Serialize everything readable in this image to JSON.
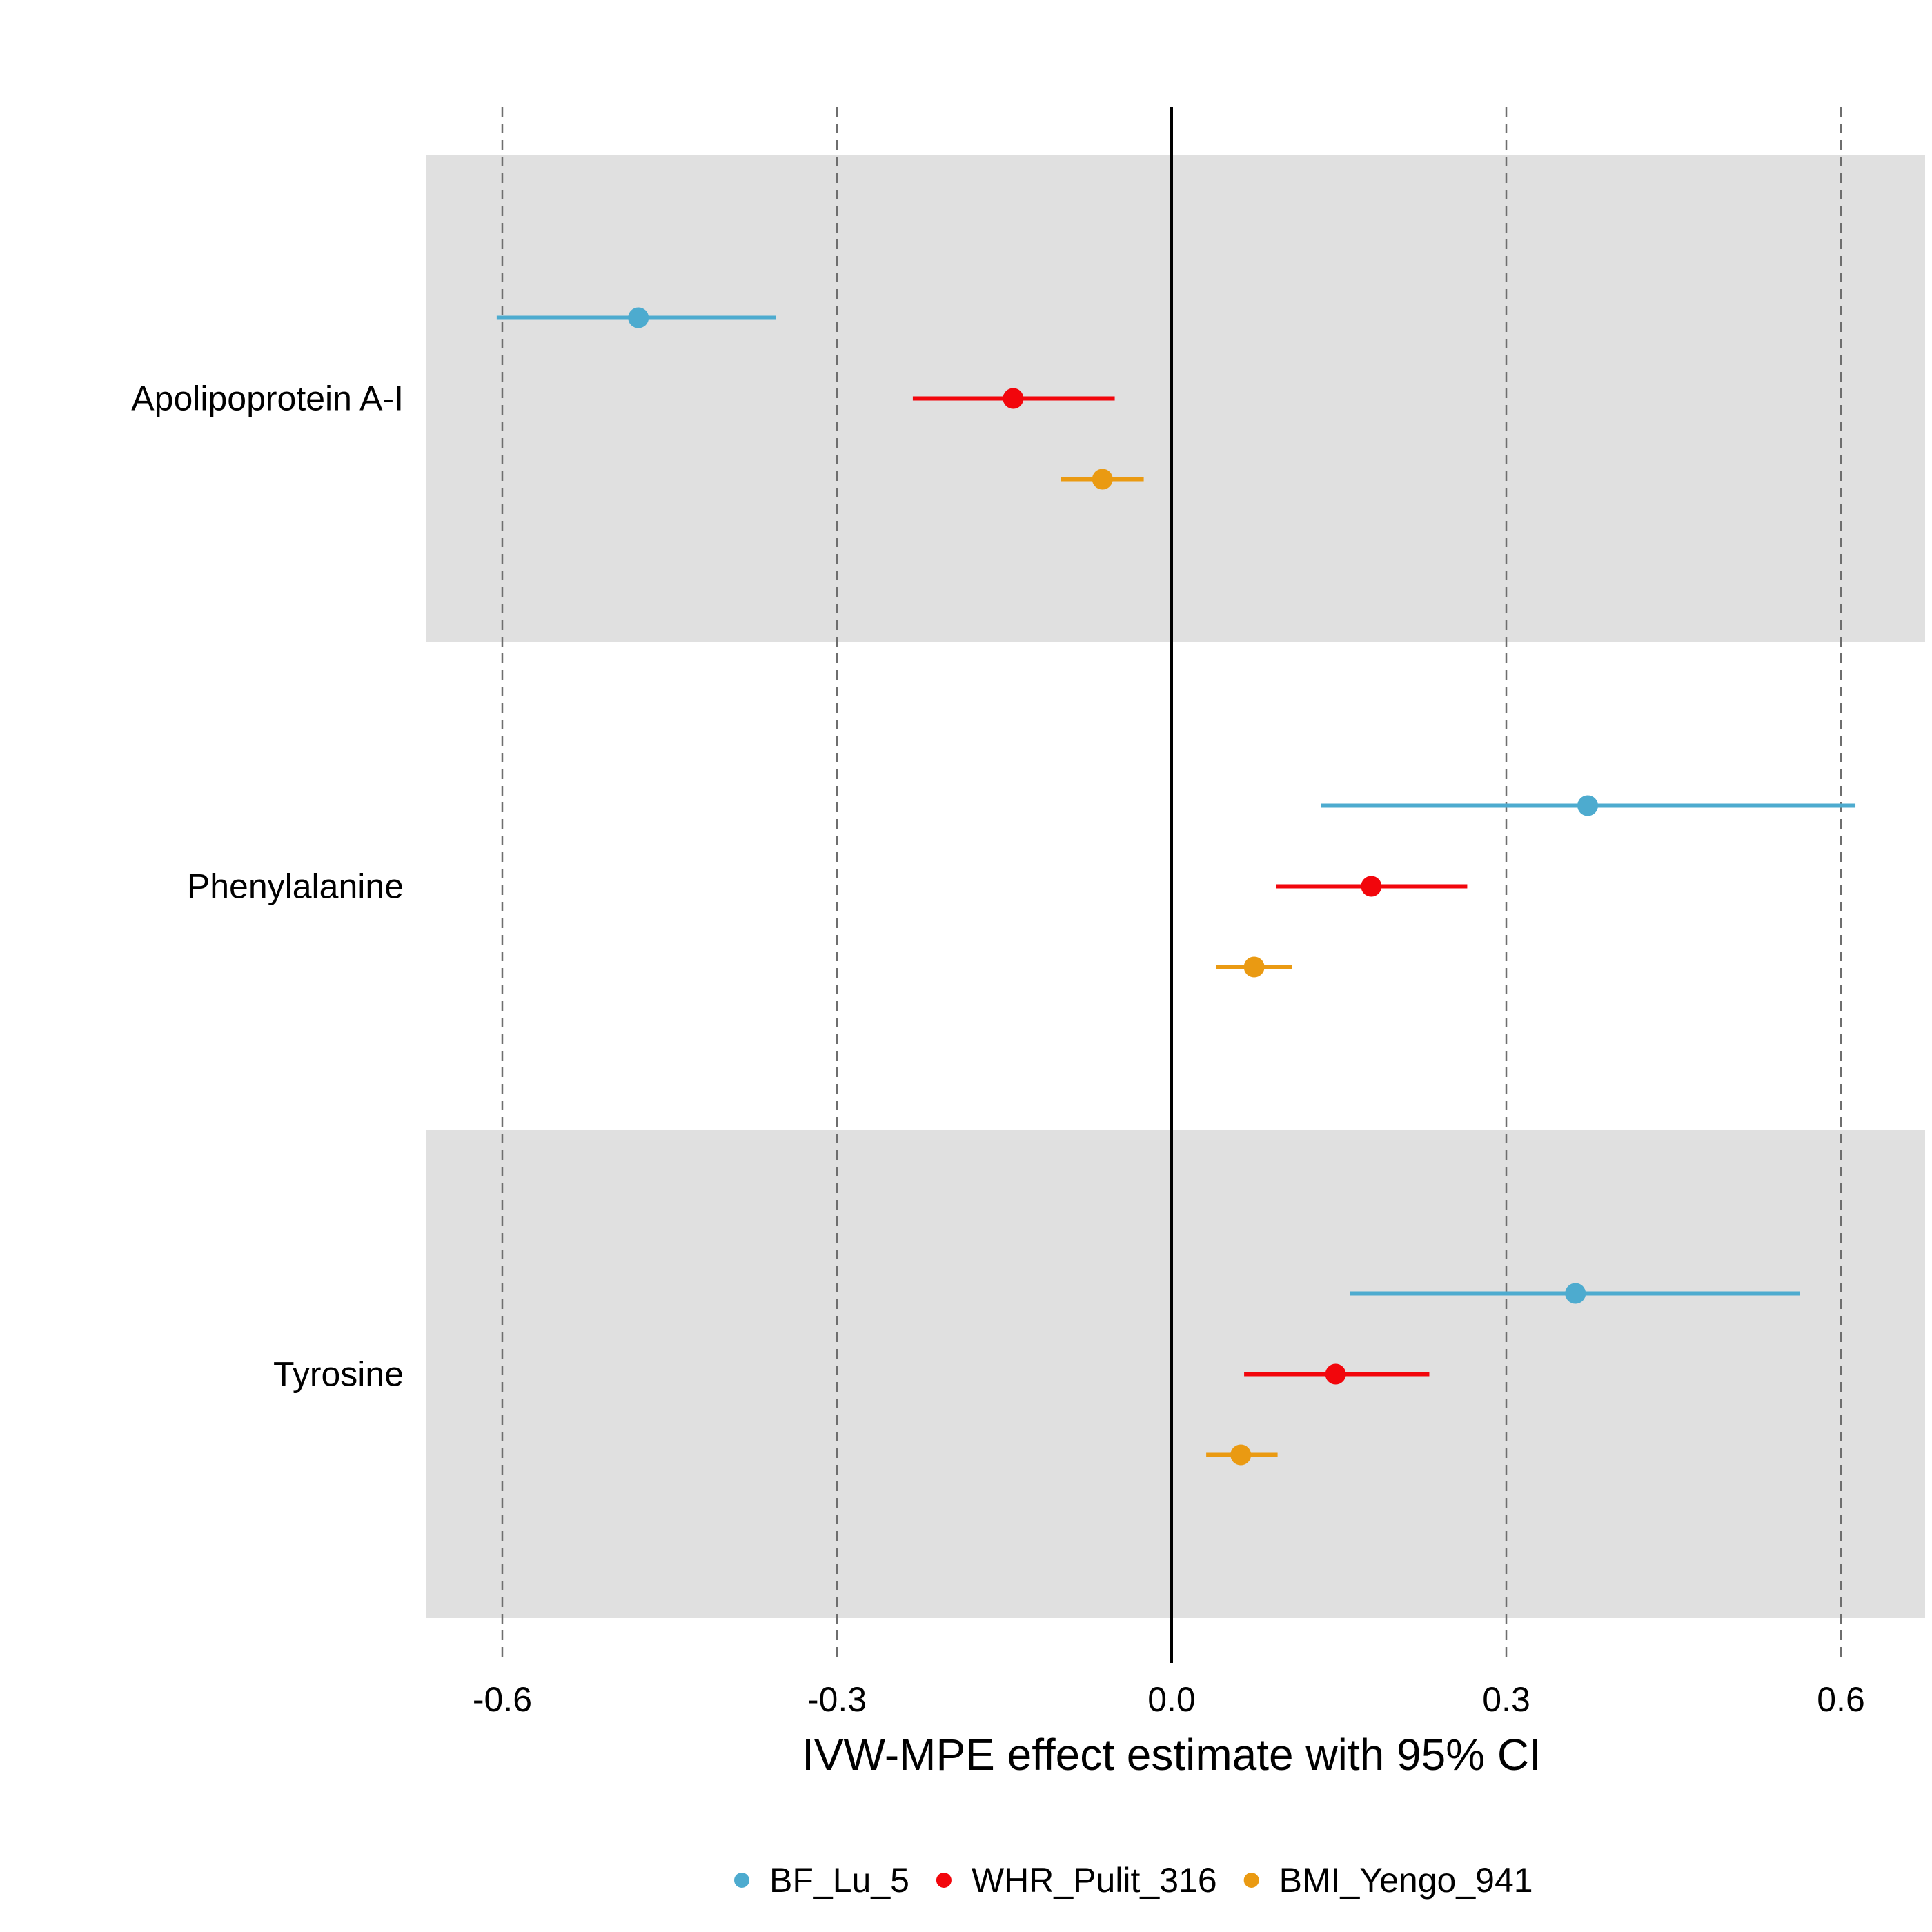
{
  "chart_data": {
    "type": "forest",
    "title": "",
    "xlabel": "IVW-MPE effect estimate with 95% CI",
    "ylabel": "",
    "xlim": [
      -0.668,
      0.675
    ],
    "xticks": [
      "-0.6",
      "-0.3",
      "0.0",
      "0.3",
      "0.6"
    ],
    "xtick_values": [
      -0.6,
      -0.3,
      0.0,
      0.3,
      0.6
    ],
    "reference_line": 0.0,
    "grid": "vertical dashed",
    "band_shading": "alternating grey",
    "legend_position": "bottom",
    "categories": [
      "Apolipoprotein A-I",
      "Phenylalanine",
      "Tyrosine"
    ],
    "series": [
      {
        "name": "BF_Lu_5",
        "color": "#4DABCF",
        "estimate": [
          -0.478,
          0.373,
          0.362
        ],
        "lower": [
          -0.605,
          0.134,
          0.16
        ],
        "upper": [
          -0.355,
          0.613,
          0.563
        ]
      },
      {
        "name": "WHR_Pulit_316",
        "color": "#F2060C",
        "estimate": [
          -0.142,
          0.179,
          0.147
        ],
        "lower": [
          -0.232,
          0.094,
          0.065
        ],
        "upper": [
          -0.051,
          0.265,
          0.231
        ]
      },
      {
        "name": "BMI_Yengo_941",
        "color": "#EA9A12",
        "estimate": [
          -0.062,
          0.074,
          0.062
        ],
        "lower": [
          -0.099,
          0.04,
          0.031
        ],
        "upper": [
          -0.025,
          0.108,
          0.095
        ]
      }
    ]
  }
}
